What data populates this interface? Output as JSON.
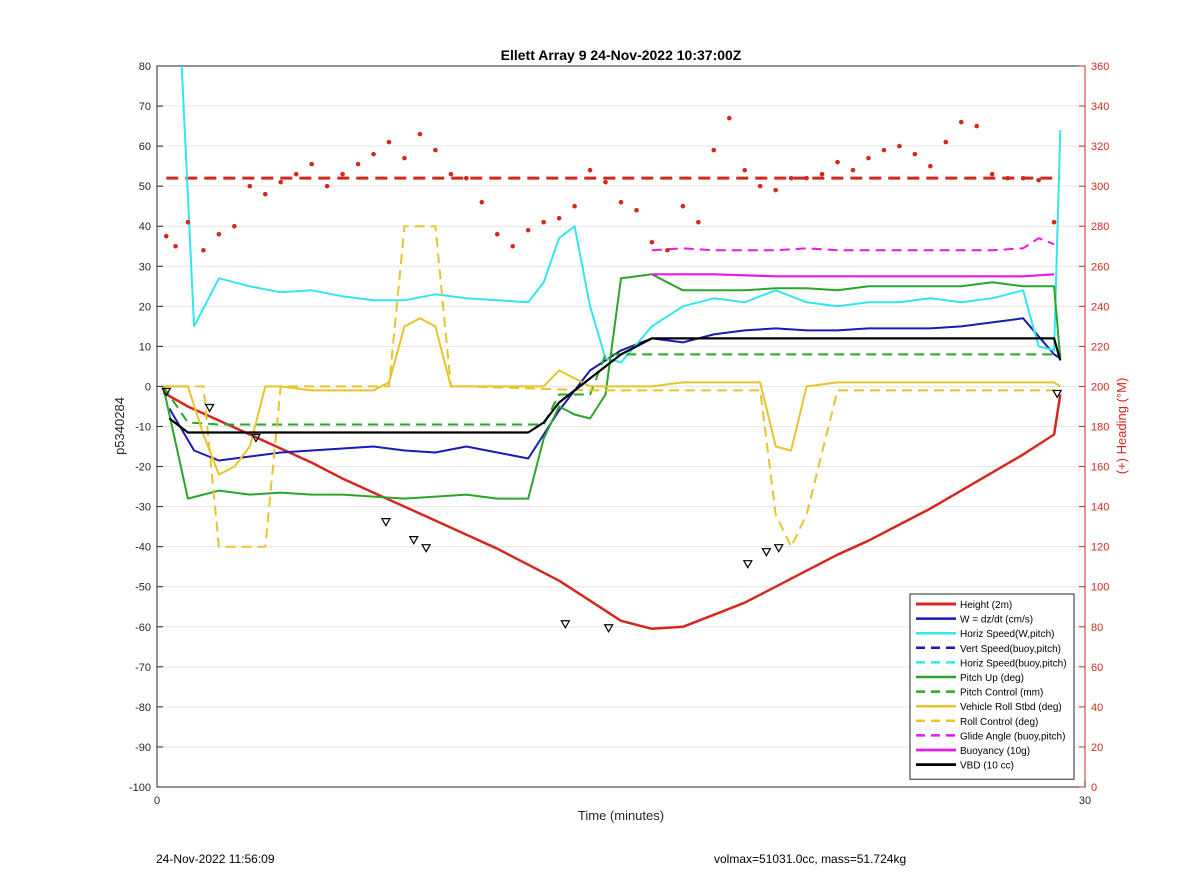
{
  "chart_data": {
    "type": "line",
    "title": "Ellett Array 9 24-Nov-2022 10:37:00Z",
    "xlabel": "Time (minutes)",
    "ylabel": "p5340284",
    "ylabel_right": "(+) Heading (°M)",
    "xlim": [
      0,
      30
    ],
    "ylim": [
      -100,
      80
    ],
    "ylim_right": [
      0,
      360
    ],
    "x_ticks": [
      "0",
      "30"
    ],
    "y_ticks": [
      "80",
      "70",
      "60",
      "50",
      "40",
      "30",
      "20",
      "10",
      "0",
      "-10",
      "-20",
      "-30",
      "-40",
      "-50",
      "-60",
      "-70",
      "-80",
      "-90",
      "-100"
    ],
    "y_right_ticks": [
      "360",
      "340",
      "320",
      "300",
      "280",
      "260",
      "240",
      "220",
      "200",
      "180",
      "160",
      "140",
      "120",
      "100",
      "80",
      "60",
      "40",
      "20",
      "0"
    ],
    "grid": true,
    "legend_position": "bottom-right",
    "colors": {
      "height": "#d4281f",
      "w": "#1a1ab4",
      "horiz_speed": "#33e6ee",
      "pitch_up": "#2aa52a",
      "roll": "#e6c52a",
      "glide": "#e61ae6",
      "vbd": "#000000",
      "heading": "#d4281f"
    },
    "series": [
      {
        "name": "Height (2m)",
        "color": "#d4281f",
        "dash": "",
        "width": 2.5,
        "x": [
          0.2,
          1,
          2,
          3,
          4,
          5,
          6,
          7,
          8,
          9,
          10,
          11,
          12,
          13,
          14,
          15,
          16,
          17,
          18,
          19,
          20,
          21,
          22,
          23,
          24,
          25,
          26,
          27,
          28,
          29,
          29.2
        ],
        "y": [
          -1.5,
          -5,
          -8.5,
          -12,
          -15.5,
          -19,
          -23,
          -26.5,
          -30,
          -33.5,
          -37,
          -40.5,
          -44.5,
          -48.5,
          -53.5,
          -58.5,
          -60.5,
          -60,
          -57,
          -54,
          -50,
          -46,
          -42,
          -38.5,
          -34.5,
          -30.5,
          -26,
          -21.5,
          -17,
          -12,
          -2
        ]
      },
      {
        "name": "W = dz/dt (cm/s)",
        "color": "#1a1ab4",
        "dash": "",
        "width": 2,
        "x": [
          0.4,
          1.2,
          2,
          3,
          4,
          5,
          6,
          7,
          8,
          9,
          10,
          11,
          12,
          12.5,
          13,
          14,
          15,
          16,
          17,
          18,
          19,
          20,
          21,
          22,
          23,
          24,
          25,
          26,
          27,
          28,
          29,
          29.2
        ],
        "y": [
          -5.5,
          -16,
          -18.5,
          -17.5,
          -16.5,
          -16,
          -15.5,
          -15,
          -16,
          -16.5,
          -15,
          -16.5,
          -18,
          -12,
          -6,
          4,
          9,
          12,
          11,
          13,
          14,
          14.5,
          14,
          14,
          14.5,
          14.5,
          14.5,
          15,
          16,
          17,
          8,
          7
        ]
      },
      {
        "name": "Horiz Speed(W,pitch)",
        "color": "#33e6ee",
        "dash": "",
        "width": 2,
        "x": [
          0.8,
          1.2,
          2,
          3,
          4,
          5,
          6,
          7,
          8,
          9,
          10,
          11,
          12,
          12.5,
          13,
          13.5,
          14,
          14.5,
          15,
          16,
          17,
          18,
          19,
          20,
          21,
          22,
          23,
          24,
          25,
          26,
          27,
          28,
          28.5,
          29,
          29.2
        ],
        "y": [
          80,
          15,
          27,
          25,
          23.5,
          24,
          22.5,
          21.5,
          21.5,
          23,
          22,
          21.5,
          21,
          26,
          37,
          40,
          20,
          7,
          6,
          15,
          20,
          22,
          21,
          24,
          21,
          20,
          21,
          21,
          22,
          21,
          22,
          24,
          10,
          9,
          64
        ]
      },
      {
        "name": "Vert Speed(buoy,pitch)",
        "color": "#1a1ab4",
        "dash": "10,6",
        "width": 2,
        "x": [],
        "y": []
      },
      {
        "name": "Horiz Speed(buoy,pitch)",
        "color": "#33e6ee",
        "dash": "10,6",
        "width": 2,
        "x": [],
        "y": []
      },
      {
        "name": "Pitch Up (deg)",
        "color": "#2aa52a",
        "dash": "",
        "width": 2,
        "x": [
          0.2,
          1,
          2,
          3,
          4,
          5,
          6,
          7,
          8,
          9,
          10,
          11,
          12,
          12.5,
          13,
          13.5,
          14,
          14.5,
          15,
          16,
          17,
          18,
          19,
          20,
          21,
          22,
          23,
          24,
          25,
          26,
          27,
          28,
          29,
          29.2
        ],
        "y": [
          0,
          -28,
          -26,
          -27,
          -26.5,
          -27,
          -27,
          -27.5,
          -28,
          -27.5,
          -27,
          -28,
          -28,
          -13,
          -5,
          -7,
          -8,
          -2,
          27,
          28,
          24,
          24,
          24,
          24.5,
          24.5,
          24,
          25,
          25,
          25,
          25,
          26,
          25,
          25,
          7
        ]
      },
      {
        "name": "Pitch Control (mm)",
        "color": "#2aa52a",
        "dash": "10,6",
        "width": 2,
        "x": [
          0.2,
          1,
          2,
          3,
          4,
          5,
          6,
          7,
          8,
          9,
          10,
          11,
          12,
          12.5,
          13,
          13.5,
          14,
          14.5,
          15,
          16,
          17,
          18,
          19,
          20,
          21,
          22,
          23,
          24,
          25,
          26,
          27,
          28,
          29,
          29.2
        ],
        "y": [
          0,
          -9,
          -9.5,
          -9.5,
          -9.5,
          -9.5,
          -9.5,
          -9.5,
          -9.5,
          -9.5,
          -9.5,
          -9.5,
          -9.5,
          -9.5,
          -2,
          -2,
          -2,
          8,
          8,
          8,
          8,
          8,
          8,
          8,
          8,
          8,
          8,
          8,
          8,
          8,
          8,
          8,
          8,
          8
        ]
      },
      {
        "name": "Vehicle Roll Stbd (deg)",
        "color": "#e6c52a",
        "dash": "",
        "width": 2,
        "x": [
          0.2,
          1,
          1.5,
          2,
          2.5,
          3,
          3.5,
          4,
          5,
          6,
          7,
          7.5,
          8,
          8.5,
          9,
          9.5,
          10,
          11,
          12,
          12.5,
          13,
          14,
          15,
          16,
          17,
          18,
          19,
          19.5,
          20,
          20.5,
          21,
          22,
          23,
          24,
          25,
          26,
          27,
          28,
          29,
          29.2
        ],
        "y": [
          0,
          0,
          -12,
          -22,
          -20,
          -15,
          0,
          0,
          -1,
          -1,
          -1,
          1,
          15,
          17,
          15,
          0,
          0,
          0,
          0,
          0,
          4,
          0,
          0,
          0,
          1,
          1,
          1,
          1,
          -15,
          -16,
          0,
          1,
          1,
          1,
          1,
          1,
          1,
          1,
          1,
          0
        ]
      },
      {
        "name": "Roll Control (deg)",
        "color": "#e6c52a",
        "dash": "10,6",
        "width": 2,
        "x": [
          0.2,
          1.5,
          2,
          2.5,
          3,
          3.5,
          4,
          7,
          7.5,
          8,
          8.5,
          9,
          9.5,
          10,
          14,
          15,
          19,
          19.5,
          20,
          20.5,
          21,
          22,
          29,
          29.2
        ],
        "y": [
          0,
          0,
          -40,
          -40,
          -40,
          -40,
          0,
          0,
          0,
          40,
          40,
          40,
          0,
          0,
          -1,
          -1,
          -1,
          -1,
          -32,
          -40,
          -32,
          -1,
          -1,
          -1
        ]
      },
      {
        "name": "Glide Angle (buoy,pitch)",
        "color": "#e61ae6",
        "dash": "10,6",
        "width": 2,
        "x": [
          16,
          17,
          18,
          19,
          20,
          21,
          22,
          23,
          24,
          25,
          26,
          27,
          28,
          28.5,
          29
        ],
        "y": [
          34,
          34.5,
          34,
          34,
          34,
          34.5,
          34,
          34,
          34,
          34,
          34,
          34,
          34.5,
          37,
          35.5
        ]
      },
      {
        "name": "Buoyancy (10g)",
        "color": "#e61ae6",
        "dash": "",
        "width": 2.2,
        "x": [
          16,
          18,
          20,
          22,
          24,
          26,
          28,
          29
        ],
        "y": [
          28,
          28,
          27.5,
          27.5,
          27.5,
          27.5,
          27.5,
          28
        ]
      },
      {
        "name": "VBD (10 cc)",
        "color": "#000000",
        "dash": "",
        "width": 2.2,
        "x": [
          0.4,
          1,
          2,
          3,
          4,
          5,
          6,
          7,
          8,
          9,
          10,
          11,
          12,
          12.5,
          13,
          14,
          15,
          16,
          17,
          18,
          19,
          20,
          21,
          22,
          23,
          24,
          25,
          26,
          27,
          28,
          29,
          29.2
        ],
        "y": [
          -8,
          -11.5,
          -11.5,
          -11.5,
          -11.5,
          -11.5,
          -11.5,
          -11.5,
          -11.5,
          -11.5,
          -11.5,
          -11.5,
          -11.5,
          -9,
          -4,
          2,
          8,
          12,
          12,
          12,
          12,
          12,
          12,
          12,
          12,
          12,
          12,
          12,
          12,
          12,
          12,
          6.5
        ]
      }
    ],
    "heading_dashed": {
      "name": "Heading",
      "color": "#d4281f",
      "y": 304,
      "axis": "right"
    },
    "heading_points": {
      "color": "#d4281f",
      "axis": "right",
      "x": [
        0.3,
        0.6,
        1,
        1.5,
        2,
        2.5,
        3,
        3.5,
        4,
        4.5,
        5,
        5.5,
        6,
        6.5,
        7,
        7.5,
        8,
        8.5,
        9,
        9.5,
        10,
        10.5,
        11,
        11.5,
        12,
        12.5,
        13,
        13.5,
        14,
        14.5,
        15,
        15.5,
        16,
        16.5,
        17,
        17.5,
        18,
        18.5,
        19,
        19.5,
        20,
        20.5,
        21,
        21.5,
        22,
        22.5,
        23,
        23.5,
        24,
        24.5,
        25,
        25.5,
        26,
        26.5,
        27,
        27.5,
        28,
        28.5,
        29
      ],
      "y": [
        275,
        270,
        282,
        268,
        276,
        280,
        300,
        296,
        302,
        306,
        311,
        300,
        306,
        311,
        316,
        322,
        314,
        326,
        318,
        306,
        304,
        292,
        276,
        270,
        278,
        282,
        284,
        290,
        308,
        302,
        292,
        288,
        272,
        268,
        290,
        282,
        318,
        334,
        308,
        300,
        298,
        304,
        304,
        306,
        312,
        308,
        314,
        318,
        320,
        316,
        310,
        322,
        332,
        330,
        306,
        304,
        304,
        303,
        282
      ]
    },
    "markers": {
      "note": "triangles along Height line",
      "x": [
        0.3,
        1.7,
        3.2,
        7.4,
        8.3,
        8.7,
        13.2,
        14.6,
        19.1,
        19.7,
        20.1,
        29.1
      ],
      "y": [
        -1.5,
        -5.5,
        -13,
        -34,
        -38.5,
        -40.5,
        -59.5,
        -60.5,
        -44.5,
        -41.5,
        -40.5,
        -2
      ]
    }
  },
  "footer": {
    "timestamp": "24-Nov-2022 11:56:09",
    "info": "volmax=51031.0cc, mass=51.724kg"
  }
}
